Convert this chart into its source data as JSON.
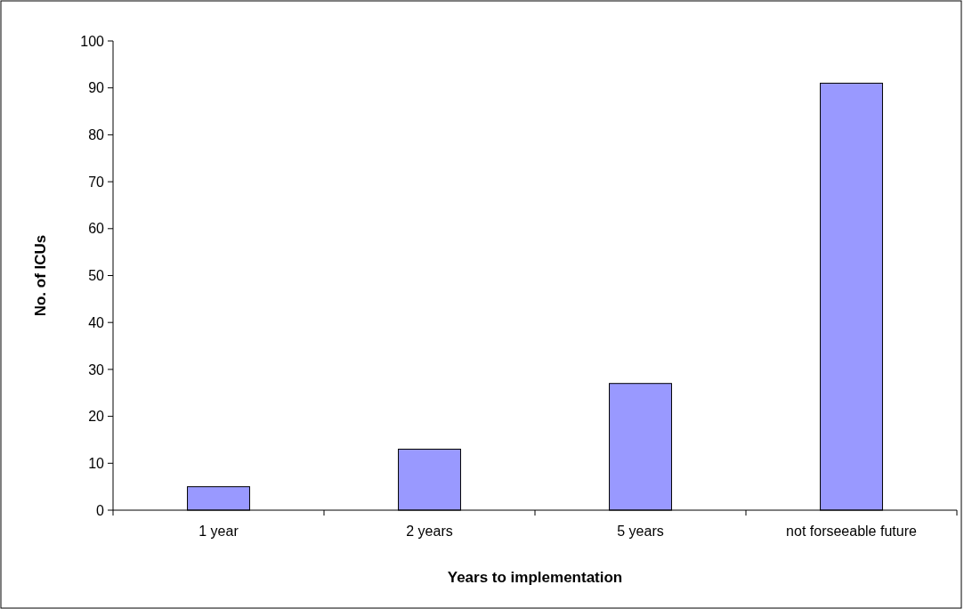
{
  "chart_data": {
    "type": "bar",
    "xlabel": "Years to implementation",
    "ylabel": "No. of ICUs",
    "categories": [
      "1 year",
      "2 years",
      "5 years",
      "not forseeable future"
    ],
    "values": [
      5,
      13,
      27,
      91
    ],
    "color": "#9999ff",
    "ylim": [
      0,
      100
    ],
    "yticks": [
      0,
      10,
      20,
      30,
      40,
      50,
      60,
      70,
      80,
      90,
      100
    ],
    "grid": false
  }
}
